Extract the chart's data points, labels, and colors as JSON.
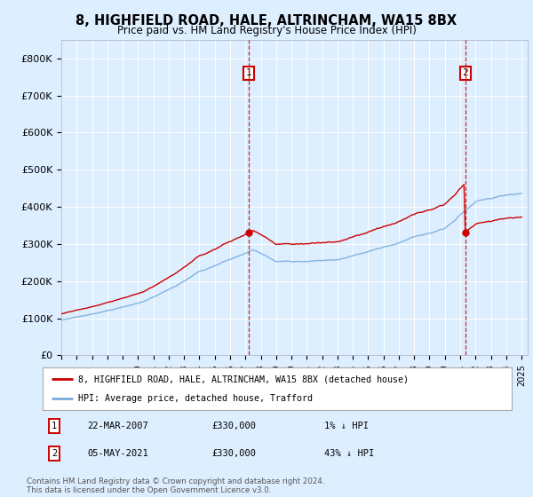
{
  "title": "8, HIGHFIELD ROAD, HALE, ALTRINCHAM, WA15 8BX",
  "subtitle": "Price paid vs. HM Land Registry's House Price Index (HPI)",
  "background_color": "#ddeeff",
  "plot_bg_color": "#ddeeff",
  "ylim": [
    0,
    850000
  ],
  "yticks": [
    0,
    100000,
    200000,
    300000,
    400000,
    500000,
    600000,
    700000,
    800000
  ],
  "ytick_labels": [
    "£0",
    "£100K",
    "£200K",
    "£300K",
    "£400K",
    "£500K",
    "£600K",
    "£700K",
    "£800K"
  ],
  "sale1_year": 2007.22,
  "sale1_price": 330000,
  "sale2_year": 2021.34,
  "sale2_price": 330000,
  "red_color": "#cc0000",
  "blue_color": "#7aacdc",
  "legend_red": "8, HIGHFIELD ROAD, HALE, ALTRINCHAM, WA15 8BX (detached house)",
  "legend_blue": "HPI: Average price, detached house, Trafford",
  "table_row1": [
    "1",
    "22-MAR-2007",
    "£330,000",
    "1% ↓ HPI"
  ],
  "table_row2": [
    "2",
    "05-MAY-2021",
    "£330,000",
    "43% ↓ HPI"
  ],
  "footer": "Contains HM Land Registry data © Crown copyright and database right 2024.\nThis data is licensed under the Open Government Licence v3.0."
}
